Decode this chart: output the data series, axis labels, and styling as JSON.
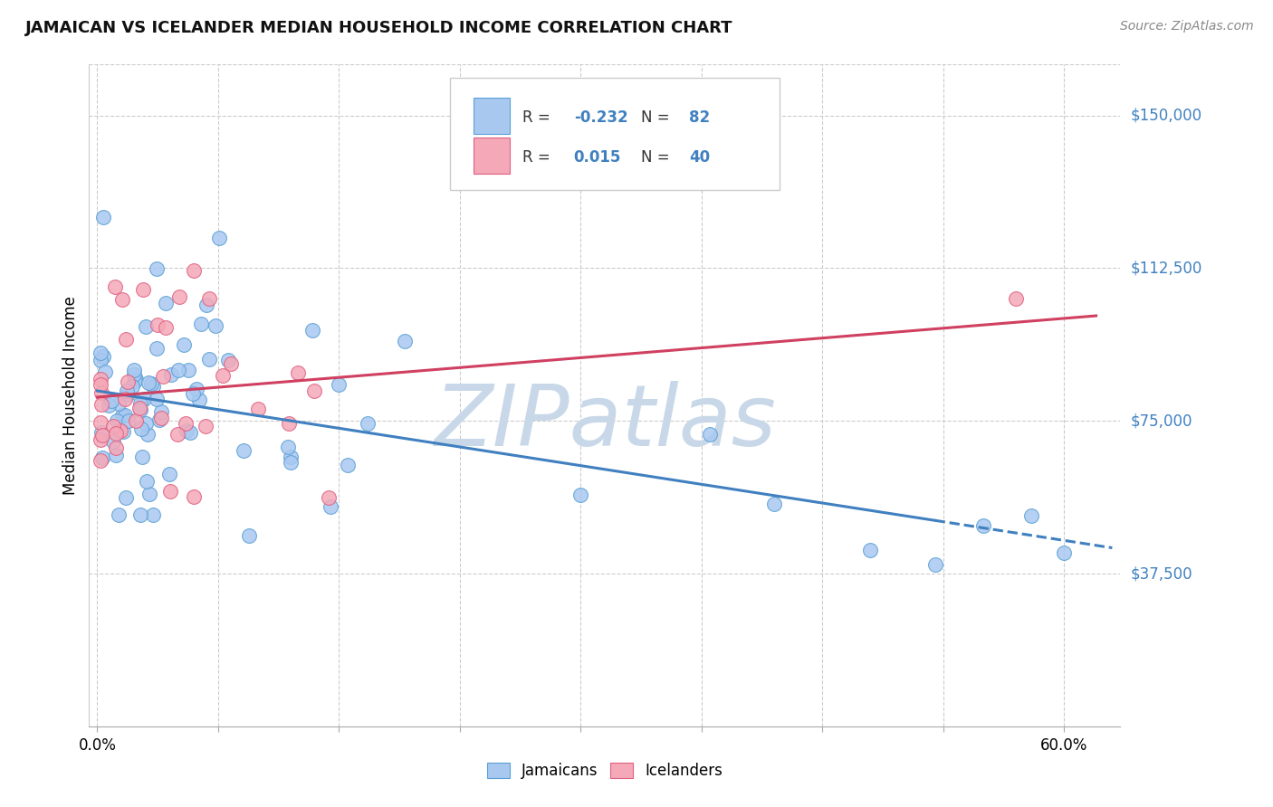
{
  "title": "JAMAICAN VS ICELANDER MEDIAN HOUSEHOLD INCOME CORRELATION CHART",
  "source": "Source: ZipAtlas.com",
  "ylabel": "Median Household Income",
  "ytick_labels": [
    "$37,500",
    "$75,000",
    "$112,500",
    "$150,000"
  ],
  "ytick_values": [
    37500,
    75000,
    112500,
    150000
  ],
  "ymin": 0,
  "ymax": 162500,
  "xmin": 0.0,
  "xmax": 0.6,
  "legend_blue_r": "-0.232",
  "legend_blue_n": "82",
  "legend_pink_r": "0.015",
  "legend_pink_n": "40",
  "legend_label_blue": "Jamaicans",
  "legend_label_pink": "Icelanders",
  "blue_fill": "#A8C8F0",
  "blue_edge": "#5A9FD4",
  "pink_fill": "#F4A8B8",
  "pink_edge": "#E06080",
  "trend_blue": "#4080C0",
  "trend_pink": "#D04060",
  "watermark_text": "ZIPatlas",
  "watermark_color": "#C8D8E8"
}
